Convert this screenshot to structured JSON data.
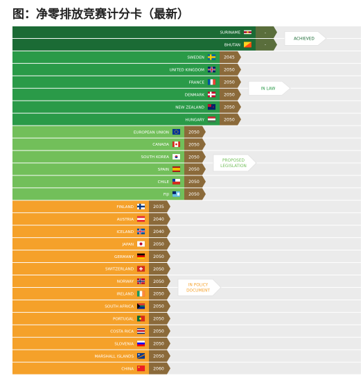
{
  "chart_data": {
    "type": "bar",
    "title": "图：净零排放竞赛计分卡（最新）",
    "xlabel": "",
    "ylabel": "",
    "groups": [
      {
        "label": "ACHIEVED",
        "color": "#1b6b35",
        "rows": [
          {
            "country": "SURINAME",
            "target": "-",
            "flag": "suriname"
          },
          {
            "country": "BHUTAN",
            "target": "-",
            "flag": "bhutan"
          }
        ]
      },
      {
        "label": "IN LAW",
        "color": "#2a9a48",
        "rows": [
          {
            "country": "SWEDEN",
            "target": "2045",
            "flag": "sweden"
          },
          {
            "country": "UNITED KINGDOM",
            "target": "2050",
            "flag": "uk"
          },
          {
            "country": "FRANCE",
            "target": "2050",
            "flag": "france"
          },
          {
            "country": "DENMARK",
            "target": "2050",
            "flag": "denmark"
          },
          {
            "country": "NEW ZEALAND",
            "target": "2050",
            "flag": "new-zealand"
          },
          {
            "country": "HUNGARY",
            "target": "2050",
            "flag": "hungary"
          }
        ]
      },
      {
        "label": "PROPOSED LEGISLATION",
        "color": "#72bf5a",
        "rows": [
          {
            "country": "EUROPEAN UNION",
            "target": "2050",
            "flag": "eu"
          },
          {
            "country": "CANADA",
            "target": "2050",
            "flag": "canada"
          },
          {
            "country": "SOUTH KOREA",
            "target": "2050",
            "flag": "south-korea"
          },
          {
            "country": "SPAIN",
            "target": "2050",
            "flag": "spain"
          },
          {
            "country": "CHILE",
            "target": "2050",
            "flag": "chile"
          },
          {
            "country": "FIJI",
            "target": "2050",
            "flag": "fiji"
          }
        ]
      },
      {
        "label": "IN POLICY DOCUMENT",
        "color": "#f5a12a",
        "rows": [
          {
            "country": "FINLAND",
            "target": "2035",
            "flag": "finland"
          },
          {
            "country": "AUSTRIA",
            "target": "2040",
            "flag": "austria"
          },
          {
            "country": "ICELAND",
            "target": "2040",
            "flag": "iceland"
          },
          {
            "country": "JAPAN",
            "target": "2050",
            "flag": "japan"
          },
          {
            "country": "GERMANY",
            "target": "2050",
            "flag": "germany"
          },
          {
            "country": "SWITZERLAND",
            "target": "2050",
            "flag": "switzerland"
          },
          {
            "country": "NORWAY",
            "target": "2050",
            "flag": "norway"
          },
          {
            "country": "IRELAND",
            "target": "2050",
            "flag": "ireland"
          },
          {
            "country": "SOUTH AFRICA",
            "target": "2050",
            "flag": "south-africa"
          },
          {
            "country": "PORTUGAL",
            "target": "2050",
            "flag": "portugal"
          },
          {
            "country": "COSTA RICA",
            "target": "2050",
            "flag": "costa-rica"
          },
          {
            "country": "SLOVENIA",
            "target": "2050",
            "flag": "slovenia"
          },
          {
            "country": "MARSHALL ISLANDS",
            "target": "2050",
            "flag": "marshall-islands"
          },
          {
            "country": "CHINA",
            "target": "2060",
            "flag": "china"
          }
        ]
      }
    ],
    "colors": {
      "badge": "#8b6a3a",
      "badge_achieved": "#5a6e3c",
      "track": "#ebebeb",
      "label_text": "#ffffff"
    }
  }
}
